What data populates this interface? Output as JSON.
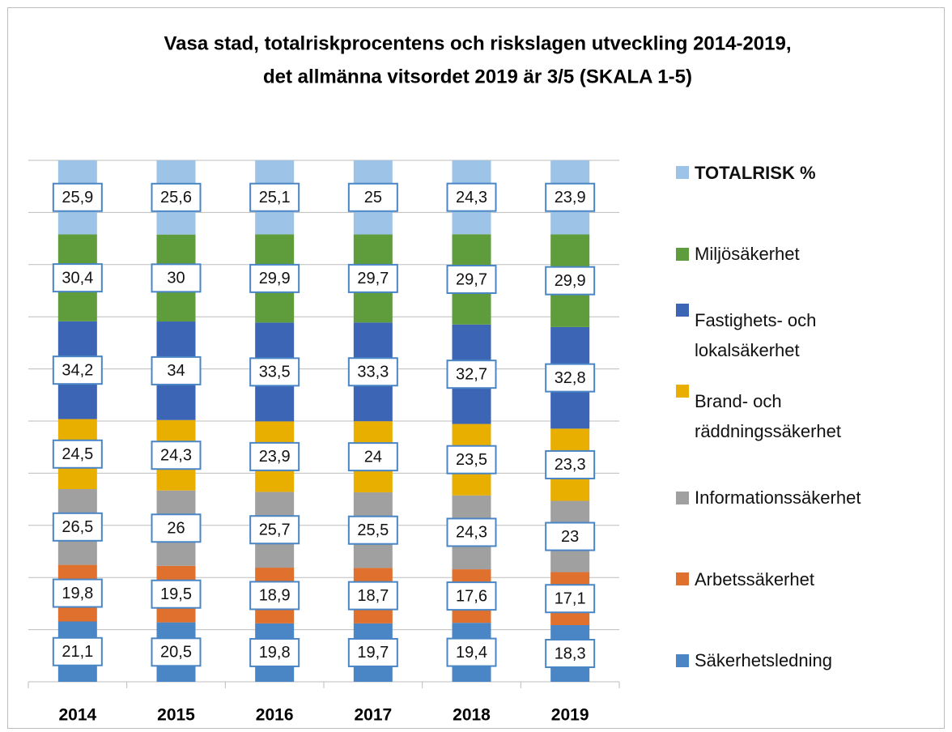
{
  "chart_data": {
    "type": "bar",
    "stacking": "percent",
    "title": [
      "Vasa stad, totalriskprocentens och riskslagen utveckling 2014-2019,",
      "det allmänna vitsordet 2019 är 3/5 (SKALA 1-5)"
    ],
    "categories": [
      "2014",
      "2015",
      "2016",
      "2017",
      "2018",
      "2019"
    ],
    "series": [
      {
        "name": "Säkerhetsledning",
        "color": "#4a86c5",
        "values": [
          21.1,
          20.5,
          19.8,
          19.7,
          19.4,
          18.3
        ],
        "value_labels": [
          "21,1",
          "20,5",
          "19,8",
          "19,7",
          "19,4",
          "18,3"
        ]
      },
      {
        "name": "Arbetssäkerhet",
        "color": "#e0702e",
        "values": [
          19.8,
          19.5,
          18.9,
          18.7,
          17.6,
          17.1
        ],
        "value_labels": [
          "19,8",
          "19,5",
          "18,9",
          "18,7",
          "17,6",
          "17,1"
        ]
      },
      {
        "name": "Informationssäkerhet",
        "color": "#a0a0a0",
        "values": [
          26.5,
          26,
          25.7,
          25.5,
          24.3,
          23
        ],
        "value_labels": [
          "26,5",
          "26",
          "25,7",
          "25,5",
          "24,3",
          "23"
        ]
      },
      {
        "name": "Brand- och räddningssäkerhet",
        "color": "#e8ae00",
        "values": [
          24.5,
          24.3,
          23.9,
          24,
          23.5,
          23.3
        ],
        "value_labels": [
          "24,5",
          "24,3",
          "23,9",
          "24",
          "23,5",
          "23,3"
        ]
      },
      {
        "name": "Fastighets- och lokalsäkerhet",
        "color": "#3c65b5",
        "values": [
          34.2,
          34,
          33.5,
          33.3,
          32.7,
          32.8
        ],
        "value_labels": [
          "34,2",
          "34",
          "33,5",
          "33,3",
          "32,7",
          "32,8"
        ]
      },
      {
        "name": "Miljösäkerhet",
        "color": "#5e9c3c",
        "values": [
          30.4,
          30,
          29.9,
          29.7,
          29.7,
          29.9
        ],
        "value_labels": [
          "30,4",
          "30",
          "29,9",
          "29,7",
          "29,7",
          "29,9"
        ]
      },
      {
        "name": "TOTALRISK %",
        "color": "#9dc3e6",
        "bold": true,
        "values": [
          25.9,
          25.6,
          25.1,
          25,
          24.3,
          23.9
        ],
        "value_labels": [
          "25,9",
          "25,6",
          "25,1",
          "25",
          "24,3",
          "23,9"
        ]
      }
    ],
    "ylim": [
      0,
      100
    ],
    "yticks": [
      0,
      10,
      20,
      30,
      40,
      50,
      60,
      70,
      80,
      90,
      100
    ],
    "ytick_labels": false,
    "grid": true,
    "legend": "right",
    "label_border": "#4a86c5"
  }
}
